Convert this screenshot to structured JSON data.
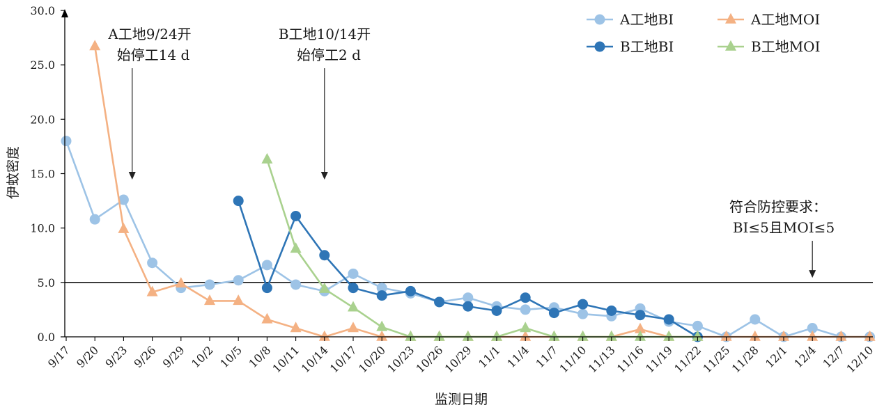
{
  "chart_data": {
    "type": "line",
    "xlabel": "监测日期",
    "ylabel": "伊蚊密度",
    "ylim": [
      0,
      30
    ],
    "yticks": [
      "0.0",
      "5.0",
      "10.0",
      "15.0",
      "20.0",
      "25.0",
      "30.0"
    ],
    "grid": false,
    "legend_position": "top-right",
    "categories": [
      "9/17",
      "9/20",
      "9/23",
      "9/26",
      "9/29",
      "10/2",
      "10/5",
      "10/8",
      "10/11",
      "10/14",
      "10/17",
      "10/20",
      "10/23",
      "10/26",
      "10/29",
      "11/1",
      "11/4",
      "11/7",
      "11/10",
      "11/13",
      "11/16",
      "11/19",
      "11/22",
      "11/25",
      "11/28",
      "12/1",
      "12/4",
      "12/7",
      "12/10"
    ],
    "threshold": {
      "value": 5.0
    },
    "series": [
      {
        "name": "A工地BI",
        "color": "#9dc3e6",
        "marker": "circle",
        "points": [
          [
            0,
            18.0
          ],
          [
            1,
            10.8
          ],
          [
            2,
            12.6
          ],
          [
            3,
            6.8
          ],
          [
            4,
            4.5
          ],
          [
            5,
            4.8
          ],
          [
            6,
            5.2
          ],
          [
            7,
            6.6
          ],
          [
            8,
            4.8
          ],
          [
            9,
            4.2
          ],
          [
            10,
            5.8
          ],
          [
            11,
            4.5
          ],
          [
            12,
            4.0
          ],
          [
            13,
            3.2
          ],
          [
            14,
            3.6
          ],
          [
            15,
            2.8
          ],
          [
            16,
            2.5
          ],
          [
            17,
            2.7
          ],
          [
            18,
            2.1
          ],
          [
            19,
            1.9
          ],
          [
            20,
            2.6
          ],
          [
            21,
            1.4
          ],
          [
            22,
            1.0
          ],
          [
            23,
            0.0
          ],
          [
            24,
            1.6
          ],
          [
            25,
            0.0
          ],
          [
            26,
            0.8
          ],
          [
            27,
            0.0
          ],
          [
            28,
            0.0
          ]
        ]
      },
      {
        "name": "A工地MOI",
        "color": "#f4b183",
        "marker": "triangle",
        "points": [
          [
            1,
            26.7
          ],
          [
            2,
            9.9
          ],
          [
            3,
            4.1
          ],
          [
            4,
            4.9
          ],
          [
            5,
            3.3
          ],
          [
            6,
            3.3
          ],
          [
            7,
            1.6
          ],
          [
            8,
            0.8
          ],
          [
            9,
            0.0
          ],
          [
            10,
            0.8
          ],
          [
            11,
            0.0
          ],
          [
            12,
            0.0
          ],
          [
            13,
            0.0
          ],
          [
            14,
            0.0
          ],
          [
            15,
            0.0
          ],
          [
            16,
            0.0
          ],
          [
            17,
            0.0
          ],
          [
            18,
            0.0
          ],
          [
            19,
            0.0
          ],
          [
            20,
            0.7
          ],
          [
            21,
            0.0
          ],
          [
            22,
            0.0
          ],
          [
            23,
            0.0
          ],
          [
            24,
            0.0
          ],
          [
            25,
            0.0
          ],
          [
            26,
            0.0
          ],
          [
            27,
            0.0
          ],
          [
            28,
            0.0
          ]
        ]
      },
      {
        "name": "B工地BI",
        "color": "#2e75b6",
        "marker": "circle",
        "points": [
          [
            6,
            12.5
          ],
          [
            7,
            4.5
          ],
          [
            8,
            11.1
          ],
          [
            9,
            7.5
          ],
          [
            10,
            4.5
          ],
          [
            11,
            3.8
          ],
          [
            12,
            4.2
          ],
          [
            13,
            3.2
          ],
          [
            14,
            2.8
          ],
          [
            15,
            2.4
          ],
          [
            16,
            3.6
          ],
          [
            17,
            2.2
          ],
          [
            18,
            3.0
          ],
          [
            19,
            2.4
          ],
          [
            20,
            2.0
          ],
          [
            21,
            1.6
          ],
          [
            22,
            0.0
          ]
        ]
      },
      {
        "name": "B工地MOI",
        "color": "#a9d18e",
        "marker": "triangle",
        "points": [
          [
            7,
            16.3
          ],
          [
            8,
            8.1
          ],
          [
            9,
            4.4
          ],
          [
            10,
            2.7
          ],
          [
            11,
            0.9
          ],
          [
            12,
            0.0
          ],
          [
            13,
            0.0
          ],
          [
            14,
            0.0
          ],
          [
            15,
            0.0
          ],
          [
            16,
            0.8
          ],
          [
            17,
            0.0
          ],
          [
            18,
            0.0
          ],
          [
            19,
            0.0
          ],
          [
            20,
            0.0
          ],
          [
            21,
            0.0
          ],
          [
            22,
            0.0
          ]
        ]
      }
    ],
    "annotations": [
      {
        "lines": [
          "A工地9/24开",
          "始停工14 d"
        ],
        "arrow_to": [
          2.3,
          14.5
        ]
      },
      {
        "lines": [
          "B工地10/14开",
          "始停工2 d"
        ],
        "arrow_to": [
          9.0,
          14.5
        ]
      },
      {
        "lines": [
          "符合防控要求：",
          "BI≤5且MOI≤5"
        ],
        "arrow_to": [
          26.0,
          5.3
        ]
      }
    ]
  }
}
